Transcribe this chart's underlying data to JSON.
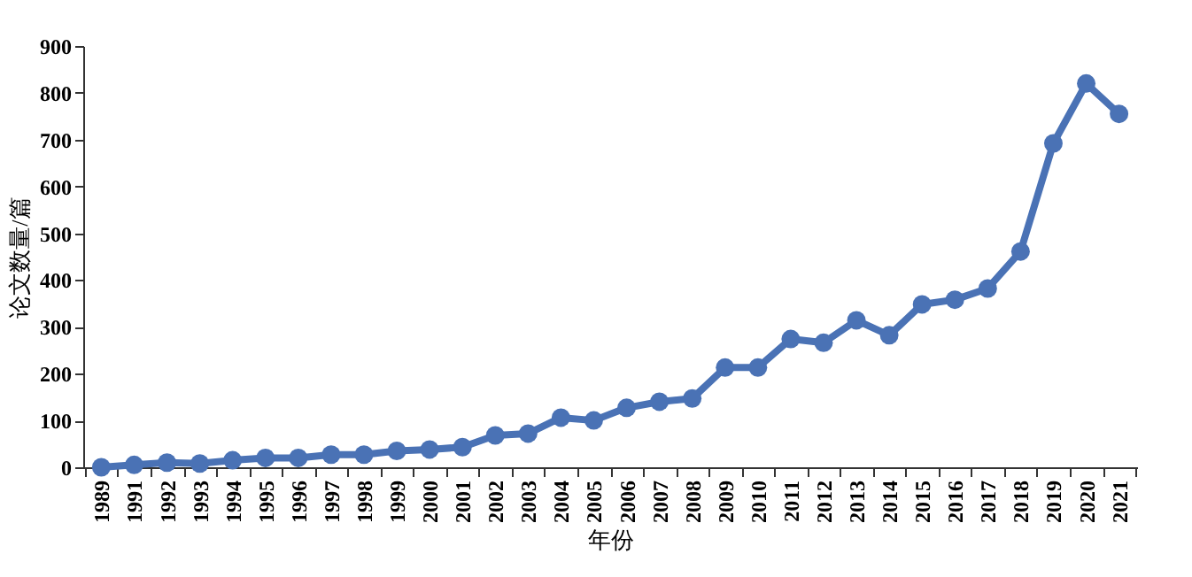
{
  "chart_data": {
    "type": "line",
    "xlabel": "年份",
    "ylabel": "论文数量/篇",
    "categories": [
      "1989",
      "1991",
      "1992",
      "1993",
      "1994",
      "1995",
      "1996",
      "1997",
      "1998",
      "1999",
      "2000",
      "2001",
      "2002",
      "2003",
      "2004",
      "2005",
      "2006",
      "2007",
      "2008",
      "2009",
      "2010",
      "2011",
      "2012",
      "2013",
      "2014",
      "2015",
      "2016",
      "2017",
      "2018",
      "2019",
      "2020",
      "2021"
    ],
    "series": [
      {
        "color": "#4a72b5",
        "values": [
          0,
          5,
          10,
          8,
          15,
          20,
          20,
          27,
          27,
          35,
          38,
          43,
          68,
          72,
          106,
          100,
          127,
          140,
          147,
          213,
          213,
          274,
          266,
          314,
          282,
          348,
          358,
          382,
          461,
          692,
          820,
          755
        ]
      }
    ],
    "ylim": [
      0,
      900
    ],
    "yticks": [
      0,
      100,
      200,
      300,
      400,
      500,
      600,
      700,
      800,
      900
    ],
    "grid": false,
    "marker": "circle",
    "line_style": "solid"
  }
}
